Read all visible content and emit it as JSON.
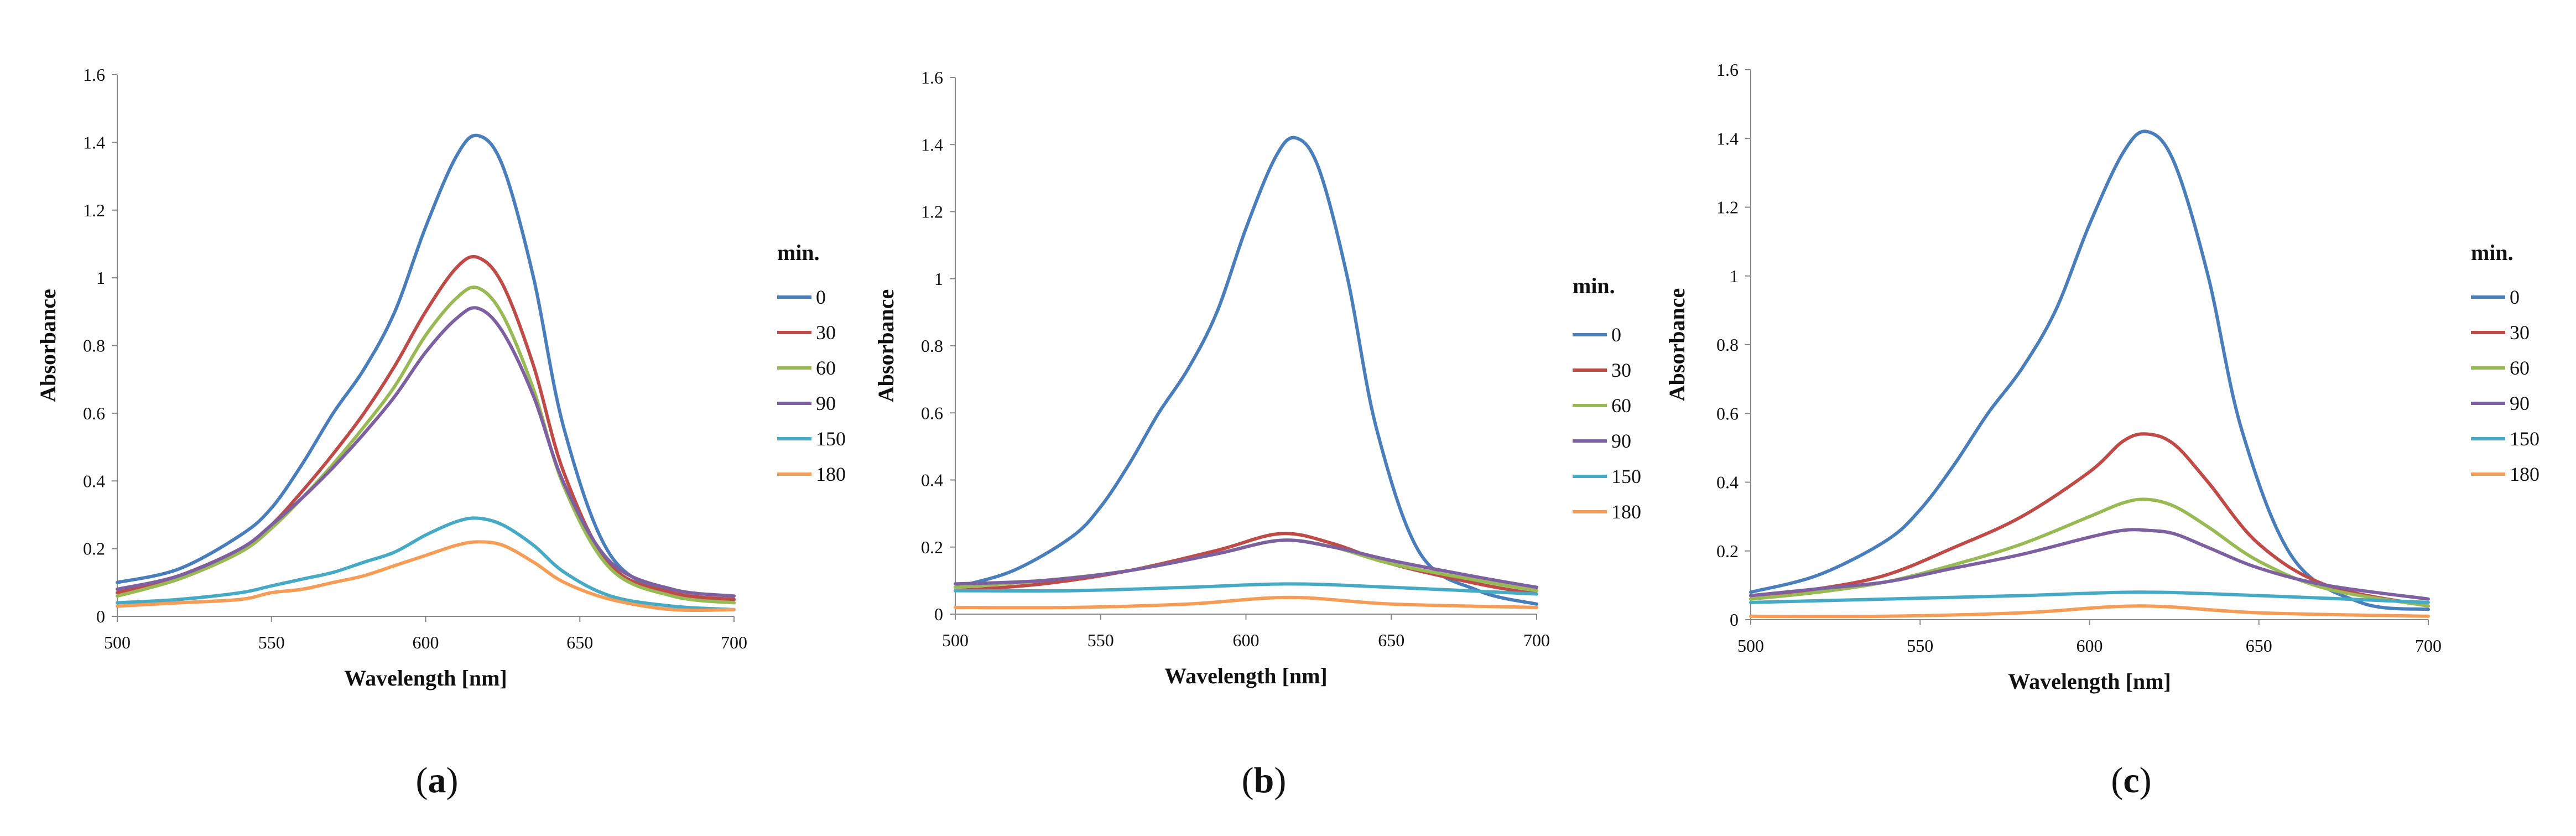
{
  "colors": {
    "0": "#4a7ebb",
    "30": "#be4b48",
    "60": "#98b954",
    "90": "#7d60a0",
    "150": "#46aac5",
    "180": "#f59d56"
  },
  "chart_data": [
    {
      "type": "line",
      "caption": "a",
      "xlabel": "Wavelength [nm]",
      "ylabel": "Absorbance",
      "xlim": [
        500,
        700
      ],
      "ylim": [
        0,
        1.6
      ],
      "xticks": [
        500,
        550,
        600,
        650,
        700
      ],
      "yticks": [
        0,
        0.2,
        0.4,
        0.6,
        0.8,
        1,
        1.2,
        1.4,
        1.6
      ],
      "legend_title": "min.",
      "series": [
        {
          "name": "0",
          "x": [
            500,
            520,
            540,
            550,
            560,
            570,
            580,
            590,
            600,
            610,
            617,
            625,
            635,
            645,
            660,
            680,
            700
          ],
          "values": [
            0.1,
            0.14,
            0.24,
            0.32,
            0.45,
            0.6,
            0.73,
            0.9,
            1.15,
            1.36,
            1.42,
            1.33,
            1.0,
            0.55,
            0.18,
            0.07,
            0.05
          ]
        },
        {
          "name": "30",
          "x": [
            500,
            520,
            540,
            550,
            560,
            570,
            580,
            590,
            600,
            610,
            617,
            625,
            635,
            645,
            660,
            680,
            700
          ],
          "values": [
            0.07,
            0.12,
            0.2,
            0.27,
            0.37,
            0.48,
            0.6,
            0.74,
            0.9,
            1.03,
            1.06,
            0.98,
            0.74,
            0.42,
            0.15,
            0.07,
            0.05
          ]
        },
        {
          "name": "60",
          "x": [
            500,
            520,
            540,
            550,
            560,
            570,
            580,
            590,
            600,
            610,
            617,
            625,
            635,
            645,
            660,
            680,
            700
          ],
          "values": [
            0.06,
            0.11,
            0.19,
            0.26,
            0.35,
            0.45,
            0.56,
            0.68,
            0.83,
            0.94,
            0.97,
            0.89,
            0.67,
            0.38,
            0.14,
            0.06,
            0.04
          ]
        },
        {
          "name": "90",
          "x": [
            500,
            520,
            540,
            550,
            560,
            570,
            580,
            590,
            600,
            610,
            617,
            625,
            635,
            645,
            660,
            680,
            700
          ],
          "values": [
            0.08,
            0.12,
            0.2,
            0.27,
            0.35,
            0.44,
            0.54,
            0.65,
            0.78,
            0.88,
            0.91,
            0.84,
            0.65,
            0.39,
            0.16,
            0.08,
            0.06
          ]
        },
        {
          "name": "150",
          "x": [
            500,
            520,
            540,
            550,
            560,
            570,
            580,
            590,
            600,
            610,
            617,
            625,
            635,
            645,
            660,
            680,
            700
          ],
          "values": [
            0.04,
            0.05,
            0.07,
            0.09,
            0.11,
            0.13,
            0.16,
            0.19,
            0.24,
            0.28,
            0.29,
            0.27,
            0.21,
            0.13,
            0.06,
            0.03,
            0.02
          ]
        },
        {
          "name": "180",
          "x": [
            500,
            520,
            540,
            550,
            560,
            570,
            580,
            590,
            600,
            610,
            617,
            625,
            635,
            645,
            660,
            680,
            700
          ],
          "values": [
            0.03,
            0.04,
            0.05,
            0.07,
            0.08,
            0.1,
            0.12,
            0.15,
            0.18,
            0.21,
            0.22,
            0.21,
            0.16,
            0.1,
            0.05,
            0.02,
            0.02
          ]
        }
      ]
    },
    {
      "type": "line",
      "caption": "b",
      "xlabel": "Wavelength [nm]",
      "ylabel": "Absorbance",
      "xlim": [
        500,
        700
      ],
      "ylim": [
        0,
        1.6
      ],
      "xticks": [
        500,
        550,
        600,
        650,
        700
      ],
      "yticks": [
        0,
        0.2,
        0.4,
        0.6,
        0.8,
        1,
        1.2,
        1.4,
        1.6
      ],
      "legend_title": "min.",
      "series": [
        {
          "name": "0",
          "x": [
            500,
            520,
            540,
            550,
            560,
            570,
            580,
            590,
            600,
            610,
            617,
            625,
            635,
            645,
            660,
            680,
            700
          ],
          "values": [
            0.08,
            0.13,
            0.23,
            0.32,
            0.45,
            0.6,
            0.73,
            0.9,
            1.15,
            1.36,
            1.42,
            1.33,
            1.0,
            0.55,
            0.18,
            0.07,
            0.03
          ]
        },
        {
          "name": "30",
          "x": [
            500,
            530,
            560,
            590,
            612,
            630,
            650,
            680,
            700
          ],
          "values": [
            0.07,
            0.09,
            0.13,
            0.19,
            0.24,
            0.21,
            0.15,
            0.09,
            0.06
          ]
        },
        {
          "name": "60",
          "x": [
            500,
            530,
            560,
            590,
            612,
            630,
            650,
            680,
            700
          ],
          "values": [
            0.08,
            0.1,
            0.13,
            0.18,
            0.22,
            0.2,
            0.15,
            0.1,
            0.07
          ]
        },
        {
          "name": "90",
          "x": [
            500,
            530,
            560,
            590,
            612,
            630,
            650,
            680,
            700
          ],
          "values": [
            0.09,
            0.1,
            0.13,
            0.18,
            0.22,
            0.2,
            0.16,
            0.11,
            0.08
          ]
        },
        {
          "name": "150",
          "x": [
            500,
            540,
            580,
            615,
            650,
            700
          ],
          "values": [
            0.07,
            0.07,
            0.08,
            0.09,
            0.08,
            0.06
          ]
        },
        {
          "name": "180",
          "x": [
            500,
            540,
            580,
            615,
            650,
            700
          ],
          "values": [
            0.02,
            0.02,
            0.03,
            0.05,
            0.03,
            0.02
          ]
        }
      ]
    },
    {
      "type": "line",
      "caption": "c",
      "xlabel": "Wavelength [nm]",
      "ylabel": "Absorbance",
      "xlim": [
        500,
        700
      ],
      "ylim": [
        0,
        1.6
      ],
      "xticks": [
        500,
        550,
        600,
        650,
        700
      ],
      "yticks": [
        0,
        0.2,
        0.4,
        0.6,
        0.8,
        1,
        1.2,
        1.4,
        1.6
      ],
      "legend_title": "min.",
      "series": [
        {
          "name": "0",
          "x": [
            500,
            520,
            540,
            550,
            560,
            570,
            580,
            590,
            600,
            610,
            617,
            625,
            635,
            645,
            660,
            680,
            700
          ],
          "values": [
            0.08,
            0.13,
            0.23,
            0.32,
            0.45,
            0.6,
            0.73,
            0.9,
            1.15,
            1.36,
            1.42,
            1.33,
            1.0,
            0.55,
            0.18,
            0.05,
            0.03
          ]
        },
        {
          "name": "30",
          "x": [
            500,
            520,
            540,
            560,
            580,
            600,
            610,
            617,
            625,
            635,
            650,
            670,
            700
          ],
          "values": [
            0.07,
            0.09,
            0.13,
            0.21,
            0.3,
            0.43,
            0.52,
            0.54,
            0.51,
            0.4,
            0.22,
            0.1,
            0.04
          ]
        },
        {
          "name": "60",
          "x": [
            500,
            520,
            540,
            560,
            580,
            600,
            610,
            617,
            625,
            635,
            650,
            670,
            700
          ],
          "values": [
            0.06,
            0.08,
            0.11,
            0.16,
            0.22,
            0.3,
            0.34,
            0.35,
            0.33,
            0.27,
            0.17,
            0.09,
            0.04
          ]
        },
        {
          "name": "90",
          "x": [
            500,
            520,
            540,
            560,
            580,
            600,
            610,
            617,
            625,
            635,
            650,
            670,
            700
          ],
          "values": [
            0.07,
            0.09,
            0.11,
            0.15,
            0.19,
            0.24,
            0.26,
            0.26,
            0.25,
            0.21,
            0.15,
            0.1,
            0.06
          ]
        },
        {
          "name": "150",
          "x": [
            500,
            540,
            580,
            615,
            650,
            700
          ],
          "values": [
            0.05,
            0.06,
            0.07,
            0.08,
            0.07,
            0.05
          ]
        },
        {
          "name": "180",
          "x": [
            500,
            540,
            580,
            615,
            650,
            700
          ],
          "values": [
            0.01,
            0.01,
            0.02,
            0.04,
            0.02,
            0.01
          ]
        }
      ]
    }
  ]
}
